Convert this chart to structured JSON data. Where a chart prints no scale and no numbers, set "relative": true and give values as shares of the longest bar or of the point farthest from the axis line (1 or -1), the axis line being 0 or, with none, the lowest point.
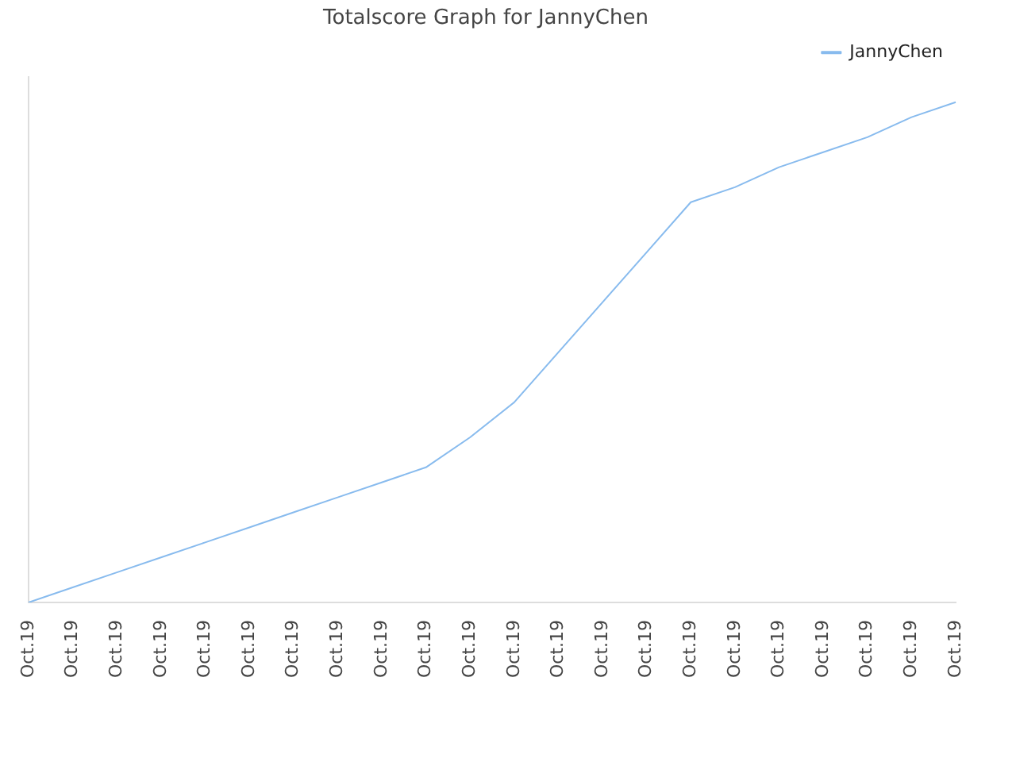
{
  "chart_data": {
    "type": "line",
    "title": "Totalscore Graph for JannyChen",
    "categories": [
      "Oct.19",
      "Oct.19",
      "Oct.19",
      "Oct.19",
      "Oct.19",
      "Oct.19",
      "Oct.19",
      "Oct.19",
      "Oct.19",
      "Oct.19",
      "Oct.19",
      "Oct.19",
      "Oct.19",
      "Oct.19",
      "Oct.19",
      "Oct.19",
      "Oct.19",
      "Oct.19",
      "Oct.19",
      "Oct.19",
      "Oct.19",
      "Oct.19"
    ],
    "series": [
      {
        "name": "JannyChen",
        "color": "#88bbee",
        "values": [
          0,
          0.03,
          0.06,
          0.09,
          0.12,
          0.15,
          0.18,
          0.21,
          0.24,
          0.27,
          0.33,
          0.4,
          0.5,
          0.6,
          0.7,
          0.8,
          0.83,
          0.87,
          0.9,
          0.93,
          0.97,
          1
        ]
      }
    ],
    "relative": true,
    "legend": "top right",
    "marker": "none",
    "line_style": "solid"
  }
}
